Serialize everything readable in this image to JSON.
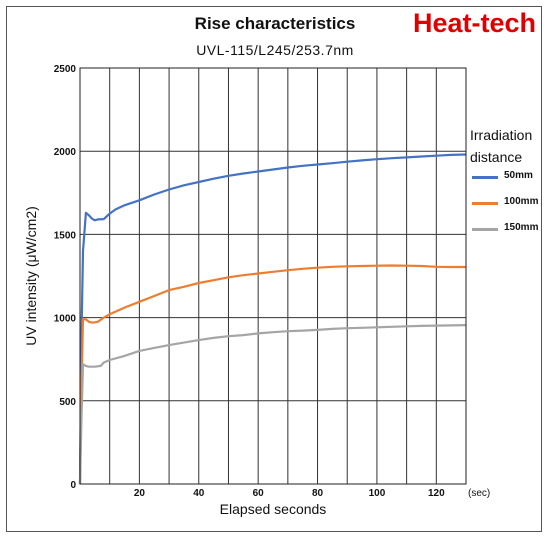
{
  "brand": "Heat-tech",
  "chart_data": {
    "type": "line",
    "title": "Rise characteristics",
    "subtitle": "UVL-115/L245/253.7nm",
    "xlabel": "Elapsed seconds",
    "x_unit": "(sec)",
    "ylabel": "UV intensity (μW/cm2)",
    "xlim": [
      0,
      130
    ],
    "ylim": [
      0,
      2500
    ],
    "x_ticks": [
      20,
      40,
      60,
      80,
      100,
      120
    ],
    "y_ticks": [
      0,
      500,
      1000,
      1500,
      2000,
      2500
    ],
    "grid": true,
    "legend_title": "Irradiation distance",
    "legend_position": "right",
    "series": [
      {
        "name": "50mm",
        "color": "#4472c4",
        "points": [
          [
            0,
            0
          ],
          [
            0.5,
            900
          ],
          [
            1,
            1400
          ],
          [
            2,
            1630
          ],
          [
            3,
            1615
          ],
          [
            4,
            1595
          ],
          [
            5,
            1585
          ],
          [
            6,
            1590
          ],
          [
            8,
            1592
          ],
          [
            10,
            1625
          ],
          [
            12,
            1650
          ],
          [
            15,
            1675
          ],
          [
            20,
            1705
          ],
          [
            25,
            1740
          ],
          [
            30,
            1770
          ],
          [
            35,
            1795
          ],
          [
            40,
            1815
          ],
          [
            45,
            1835
          ],
          [
            50,
            1852
          ],
          [
            55,
            1866
          ],
          [
            60,
            1878
          ],
          [
            65,
            1890
          ],
          [
            70,
            1902
          ],
          [
            75,
            1912
          ],
          [
            80,
            1920
          ],
          [
            85,
            1928
          ],
          [
            90,
            1937
          ],
          [
            95,
            1945
          ],
          [
            100,
            1952
          ],
          [
            105,
            1958
          ],
          [
            110,
            1963
          ],
          [
            115,
            1968
          ],
          [
            120,
            1973
          ],
          [
            125,
            1978
          ],
          [
            130,
            1980
          ]
        ]
      },
      {
        "name": "100mm",
        "color": "#ed7d31",
        "points": [
          [
            0,
            0
          ],
          [
            0.5,
            600
          ],
          [
            1,
            990
          ],
          [
            2,
            990
          ],
          [
            3,
            975
          ],
          [
            4,
            970
          ],
          [
            5,
            972
          ],
          [
            6,
            975
          ],
          [
            8,
            1000
          ],
          [
            10,
            1020
          ],
          [
            15,
            1060
          ],
          [
            20,
            1095
          ],
          [
            25,
            1130
          ],
          [
            30,
            1165
          ],
          [
            35,
            1185
          ],
          [
            40,
            1208
          ],
          [
            45,
            1225
          ],
          [
            50,
            1242
          ],
          [
            55,
            1255
          ],
          [
            60,
            1265
          ],
          [
            65,
            1275
          ],
          [
            70,
            1285
          ],
          [
            75,
            1293
          ],
          [
            80,
            1300
          ],
          [
            85,
            1305
          ],
          [
            90,
            1308
          ],
          [
            95,
            1310
          ],
          [
            100,
            1312
          ],
          [
            105,
            1313
          ],
          [
            110,
            1312
          ],
          [
            115,
            1310
          ],
          [
            120,
            1305
          ],
          [
            125,
            1304
          ],
          [
            130,
            1304
          ]
        ]
      },
      {
        "name": "150mm",
        "color": "#a5a5a5",
        "points": [
          [
            0,
            0
          ],
          [
            0.5,
            400
          ],
          [
            1,
            720
          ],
          [
            2,
            710
          ],
          [
            3,
            705
          ],
          [
            5,
            705
          ],
          [
            7,
            710
          ],
          [
            8,
            730
          ],
          [
            10,
            745
          ],
          [
            15,
            770
          ],
          [
            20,
            800
          ],
          [
            25,
            818
          ],
          [
            30,
            835
          ],
          [
            35,
            850
          ],
          [
            40,
            865
          ],
          [
            45,
            878
          ],
          [
            50,
            888
          ],
          [
            55,
            895
          ],
          [
            60,
            905
          ],
          [
            65,
            912
          ],
          [
            70,
            918
          ],
          [
            75,
            922
          ],
          [
            80,
            926
          ],
          [
            85,
            932
          ],
          [
            90,
            936
          ],
          [
            95,
            939
          ],
          [
            100,
            942
          ],
          [
            105,
            945
          ],
          [
            110,
            948
          ],
          [
            115,
            950
          ],
          [
            120,
            952
          ],
          [
            125,
            953
          ],
          [
            130,
            955
          ]
        ]
      }
    ]
  }
}
